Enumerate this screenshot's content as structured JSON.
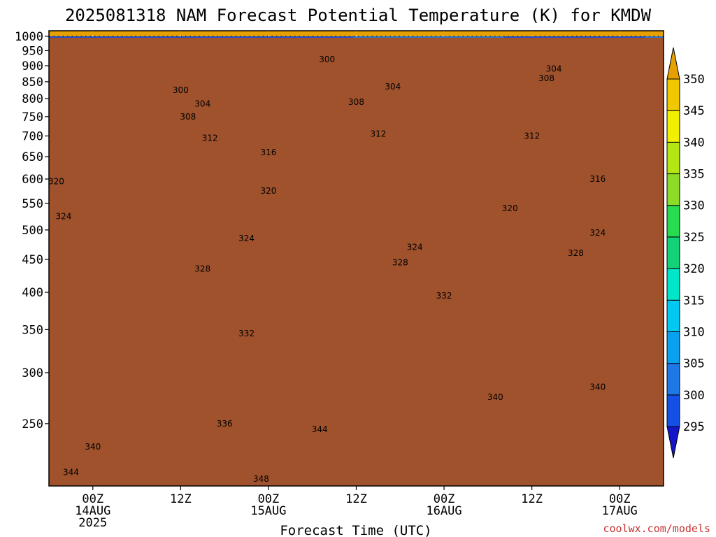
{
  "chart_data": {
    "type": "heatmap",
    "title": "2025081318 NAM Forecast Potential Temperature (K) for KMDW",
    "xlabel": "Forecast Time (UTC)",
    "ylabel": "",
    "y_scale": "log",
    "ylim": [
      1020,
      200
    ],
    "y_ticks": [
      250,
      300,
      350,
      400,
      450,
      500,
      550,
      600,
      650,
      700,
      750,
      800,
      850,
      900,
      950,
      1000
    ],
    "x_range": [
      "2025-08-13 18Z",
      "2025-08-17 06Z"
    ],
    "x_ticks": [
      {
        "time": "2025-08-14 00Z",
        "lines": [
          "00Z",
          "14AUG",
          "2025"
        ]
      },
      {
        "time": "2025-08-14 12Z",
        "lines": [
          "12Z"
        ]
      },
      {
        "time": "2025-08-15 00Z",
        "lines": [
          "00Z",
          "15AUG"
        ]
      },
      {
        "time": "2025-08-15 12Z",
        "lines": [
          "12Z"
        ]
      },
      {
        "time": "2025-08-16 00Z",
        "lines": [
          "00Z",
          "16AUG"
        ]
      },
      {
        "time": "2025-08-16 12Z",
        "lines": [
          "12Z"
        ]
      },
      {
        "time": "2025-08-17 00Z",
        "lines": [
          "00Z",
          "17AUG"
        ]
      }
    ],
    "grid": true,
    "ground_level_hpa": 995,
    "colorbar": {
      "levels": [
        295,
        300,
        305,
        310,
        315,
        320,
        325,
        330,
        335,
        340,
        345,
        350
      ],
      "colors": [
        "#1414c8",
        "#1450e6",
        "#1e78e6",
        "#0aa0f0",
        "#00c8f0",
        "#00e6c8",
        "#14d278",
        "#28dc50",
        "#8cdc28",
        "#b4e614",
        "#f0f000",
        "#f0c800",
        "#e6a000"
      ]
    },
    "contour_interval": 2,
    "contour_labels": [
      {
        "time": "2025-08-13 21Z",
        "hpa": 210,
        "value": "344"
      },
      {
        "time": "2025-08-14 00Z",
        "hpa": 230,
        "value": "340"
      },
      {
        "time": "2025-08-14 18Z",
        "hpa": 250,
        "value": "336"
      },
      {
        "time": "2025-08-14 23Z",
        "hpa": 205,
        "value": "348"
      },
      {
        "time": "2025-08-15 07Z",
        "hpa": 245,
        "value": "344"
      },
      {
        "time": "2025-08-16 07Z",
        "hpa": 275,
        "value": "340"
      },
      {
        "time": "2025-08-16 21Z",
        "hpa": 285,
        "value": "340"
      },
      {
        "time": "2025-08-14 21Z",
        "hpa": 345,
        "value": "332"
      },
      {
        "time": "2025-08-16 00Z",
        "hpa": 395,
        "value": "332"
      },
      {
        "time": "2025-08-14 15Z",
        "hpa": 435,
        "value": "328"
      },
      {
        "time": "2025-08-15 18Z",
        "hpa": 445,
        "value": "328"
      },
      {
        "time": "2025-08-16 18Z",
        "hpa": 460,
        "value": "328"
      },
      {
        "time": "2025-08-14 21Z",
        "hpa": 485,
        "value": "324"
      },
      {
        "time": "2025-08-15 20Z",
        "hpa": 470,
        "value": "324"
      },
      {
        "time": "2025-08-13 20Z",
        "hpa": 525,
        "value": "324"
      },
      {
        "time": "2025-08-16 21Z",
        "hpa": 495,
        "value": "324"
      },
      {
        "time": "2025-08-16 09Z",
        "hpa": 540,
        "value": "320"
      },
      {
        "time": "2025-08-15 00Z",
        "hpa": 575,
        "value": "320"
      },
      {
        "time": "2025-08-13 19Z",
        "hpa": 595,
        "value": "320"
      },
      {
        "time": "2025-08-16 21Z",
        "hpa": 600,
        "value": "316"
      },
      {
        "time": "2025-08-15 00Z",
        "hpa": 660,
        "value": "316"
      },
      {
        "time": "2025-08-14 16Z",
        "hpa": 695,
        "value": "312"
      },
      {
        "time": "2025-08-15 15Z",
        "hpa": 705,
        "value": "312"
      },
      {
        "time": "2025-08-16 12Z",
        "hpa": 700,
        "value": "312"
      },
      {
        "time": "2025-08-14 13Z",
        "hpa": 750,
        "value": "308"
      },
      {
        "time": "2025-08-15 12Z",
        "hpa": 790,
        "value": "308"
      },
      {
        "time": "2025-08-16 14Z",
        "hpa": 860,
        "value": "308"
      },
      {
        "time": "2025-08-14 15Z",
        "hpa": 785,
        "value": "304"
      },
      {
        "time": "2025-08-15 17Z",
        "hpa": 835,
        "value": "304"
      },
      {
        "time": "2025-08-16 15Z",
        "hpa": 890,
        "value": "304"
      },
      {
        "time": "2025-08-14 12Z",
        "hpa": 825,
        "value": "300"
      },
      {
        "time": "2025-08-15 08Z",
        "hpa": 920,
        "value": "300"
      }
    ]
  },
  "credit": "coolwx.com/models"
}
